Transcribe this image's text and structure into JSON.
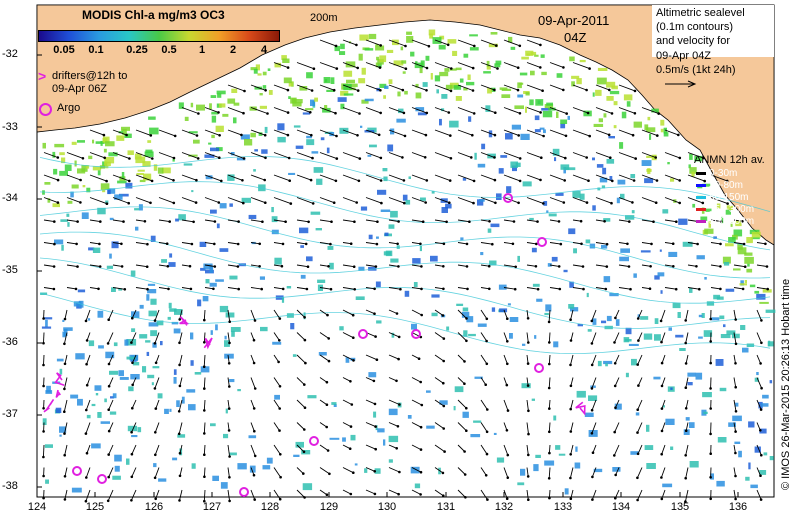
{
  "title": "MODIS Chl-a mg/m3 OC3",
  "date": "09-Apr-2011",
  "time": "04Z",
  "isobath_label": "200m",
  "colorbar": {
    "ticks": [
      "0.05",
      "0.1",
      "0.25",
      "0.5",
      "1",
      "2",
      "4"
    ],
    "colors": [
      "#1a0a8c",
      "#1f4fd8",
      "#2a9be0",
      "#29c7c7",
      "#49c947",
      "#c8d830",
      "#f0a028",
      "#d84a1a",
      "#8a1a08"
    ]
  },
  "drifters_label_line1": "drifters@12h to",
  "drifters_label_line2": "09-Apr 06Z",
  "argo_label": "Argo",
  "altimetry": {
    "line1": "Altimetric sealevel",
    "line2": "(0.1m contours)",
    "line3": "and velocity for",
    "line4": "09-Apr 04Z",
    "line5": "0.5m/s (1kt 24h)"
  },
  "anmn": {
    "title": "ANMN 12h av.",
    "items": [
      {
        "label": "0-30m",
        "color": "#000000"
      },
      {
        "label": "30-80m",
        "color": "#1010ff"
      },
      {
        "label": "80-150m",
        "color": "#20c0e0"
      },
      {
        "label": "150-300m",
        "color": "#e02020"
      },
      {
        "label": "300-600m",
        "color": "#c020c0"
      }
    ]
  },
  "credit": "© IMOS 26-Mar-2015 20:26:13 Hobart time",
  "lat_ticks": [
    "-32",
    "-33",
    "-34",
    "-35",
    "-36",
    "-37",
    "-38"
  ],
  "lon_ticks": [
    "124",
    "125",
    "126",
    "127",
    "128",
    "129",
    "130",
    "131",
    "132",
    "133",
    "134",
    "135",
    "136"
  ],
  "colors": {
    "land": "#f5c89a",
    "drifter": "#e020e0",
    "arrow": "#000000"
  }
}
